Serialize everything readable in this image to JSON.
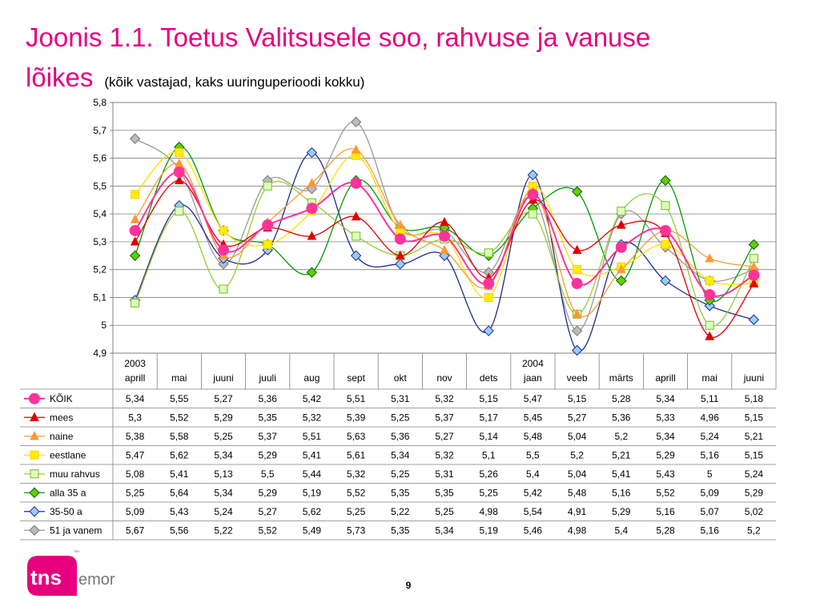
{
  "header": {
    "title_line1": "Joonis 1.1. Toetus Valitsusele soo, rahvuse ja vanuse",
    "title_line2": "lõikes",
    "subtitle": "(kõik vastajad, kaks uuringuperioodi kokku)"
  },
  "footer": {
    "page_number": "9",
    "logo_text_left": "tns",
    "logo_text_right": "emor",
    "logo_tm": "™"
  },
  "colors": {
    "title": "#e6007e",
    "logo": "#e6007e",
    "gridline": "#808080"
  },
  "chart_data": {
    "type": "line",
    "title": "",
    "xlabel": "",
    "ylabel": "",
    "ylim": [
      4.9,
      5.8
    ],
    "ytick_step": 0.1,
    "y_tick_labels": [
      "4,9",
      "5",
      "5,1",
      "5,2",
      "5,3",
      "5,4",
      "5,5",
      "5,6",
      "5,7",
      "5,8"
    ],
    "grid": "horizontal",
    "smoothed": true,
    "year_labels": [
      {
        "index": 0,
        "label": "2003"
      },
      {
        "index": 9,
        "label": "2004"
      }
    ],
    "categories": [
      "aprill",
      "mai",
      "juuni",
      "juuli",
      "aug",
      "sept",
      "okt",
      "nov",
      "dets",
      "jaan",
      "veeb",
      "märts",
      "aprill",
      "mai",
      "juuni"
    ],
    "legend_placement": "data-table-below",
    "series": [
      {
        "name": "KÕIK",
        "color": "#ff3399",
        "marker": "circle",
        "values": [
          5.34,
          5.55,
          5.27,
          5.36,
          5.42,
          5.51,
          5.31,
          5.32,
          5.15,
          5.47,
          5.15,
          5.28,
          5.34,
          5.11,
          5.18
        ],
        "labels": [
          "5,34",
          "5,55",
          "5,27",
          "5,36",
          "5,42",
          "5,51",
          "5,31",
          "5,32",
          "5,15",
          "5,47",
          "5,15",
          "5,28",
          "5,34",
          "5,11",
          "5,18"
        ]
      },
      {
        "name": "mees",
        "color": "#e00000",
        "marker": "triangle",
        "values": [
          5.3,
          5.52,
          5.29,
          5.35,
          5.32,
          5.39,
          5.25,
          5.37,
          5.17,
          5.45,
          5.27,
          5.36,
          5.33,
          4.96,
          5.15
        ],
        "labels": [
          "5,3",
          "5,52",
          "5,29",
          "5,35",
          "5,32",
          "5,39",
          "5,25",
          "5,37",
          "5,17",
          "5,45",
          "5,27",
          "5,36",
          "5,33",
          "4,96",
          "5,15"
        ]
      },
      {
        "name": "naine",
        "color": "#ff9933",
        "marker": "triangle",
        "values": [
          5.38,
          5.58,
          5.25,
          5.37,
          5.51,
          5.63,
          5.36,
          5.27,
          5.14,
          5.48,
          5.04,
          5.2,
          5.34,
          5.24,
          5.21
        ],
        "labels": [
          "5,38",
          "5,58",
          "5,25",
          "5,37",
          "5,51",
          "5,63",
          "5,36",
          "5,27",
          "5,14",
          "5,48",
          "5,04",
          "5,2",
          "5,34",
          "5,24",
          "5,21"
        ]
      },
      {
        "name": "eestlane",
        "color": "#ffdd00",
        "marker": "square",
        "values": [
          5.47,
          5.62,
          5.34,
          5.29,
          5.41,
          5.61,
          5.34,
          5.32,
          5.1,
          5.5,
          5.2,
          5.21,
          5.29,
          5.16,
          5.15
        ],
        "labels": [
          "5,47",
          "5,62",
          "5,34",
          "5,29",
          "5,41",
          "5,61",
          "5,34",
          "5,32",
          "5,1",
          "5,5",
          "5,2",
          "5,21",
          "5,29",
          "5,16",
          "5,15"
        ]
      },
      {
        "name": "muu rahvus",
        "color": "#99cc33",
        "marker": "square-open",
        "values": [
          5.08,
          5.41,
          5.13,
          5.5,
          5.44,
          5.32,
          5.25,
          5.31,
          5.26,
          5.4,
          5.04,
          5.41,
          5.43,
          5.0,
          5.24
        ],
        "labels": [
          "5,08",
          "5,41",
          "5,13",
          "5,5",
          "5,44",
          "5,32",
          "5,25",
          "5,31",
          "5,26",
          "5,4",
          "5,04",
          "5,41",
          "5,43",
          "5",
          "5,24"
        ]
      },
      {
        "name": "alla 35 a",
        "color": "#009900",
        "marker": "diamond",
        "values": [
          5.25,
          5.64,
          5.34,
          5.29,
          5.19,
          5.52,
          5.35,
          5.35,
          5.25,
          5.42,
          5.48,
          5.16,
          5.52,
          5.09,
          5.29
        ],
        "labels": [
          "5,25",
          "5,64",
          "5,34",
          "5,29",
          "5,19",
          "5,52",
          "5,35",
          "5,35",
          "5,25",
          "5,42",
          "5,48",
          "5,16",
          "5,52",
          "5,09",
          "5,29"
        ]
      },
      {
        "name": "35-50 a",
        "color": "#1f2a8c",
        "marker": "diamond",
        "values": [
          5.09,
          5.43,
          5.24,
          5.27,
          5.62,
          5.25,
          5.22,
          5.25,
          4.98,
          5.54,
          4.91,
          5.29,
          5.16,
          5.07,
          5.02
        ],
        "labels": [
          "5,09",
          "5,43",
          "5,24",
          "5,27",
          "5,62",
          "5,25",
          "5,22",
          "5,25",
          "4,98",
          "5,54",
          "4,91",
          "5,29",
          "5,16",
          "5,07",
          "5,02"
        ]
      },
      {
        "name": "51 ja vanem",
        "color": "#999999",
        "marker": "diamond",
        "values": [
          5.67,
          5.56,
          5.22,
          5.52,
          5.49,
          5.73,
          5.35,
          5.34,
          5.19,
          5.46,
          4.98,
          5.4,
          5.28,
          5.16,
          5.2
        ],
        "labels": [
          "5,67",
          "5,56",
          "5,22",
          "5,52",
          "5,49",
          "5,73",
          "5,35",
          "5,34",
          "5,19",
          "5,46",
          "4,98",
          "5,4",
          "5,28",
          "5,16",
          "5,2"
        ]
      }
    ],
    "marker_styles": {
      "KÕIK": {
        "fill": "#ff3399",
        "stroke": "#ff3399"
      },
      "mees": {
        "fill": "#e00000",
        "stroke": "#e00000"
      },
      "naine": {
        "fill": "#ff9933",
        "stroke": "#ff9933"
      },
      "eestlane": {
        "fill": "#ffee00",
        "stroke": "#ffcc00"
      },
      "muu rahvus": {
        "fill": "#ddffbb",
        "stroke": "#77bb22"
      },
      "alla 35 a": {
        "fill": "#66cc00",
        "stroke": "#006600"
      },
      "35-50 a": {
        "fill": "#99ccff",
        "stroke": "#1f2a8c"
      },
      "51 ja vanem": {
        "fill": "#bbbbbb",
        "stroke": "#777777"
      }
    }
  }
}
